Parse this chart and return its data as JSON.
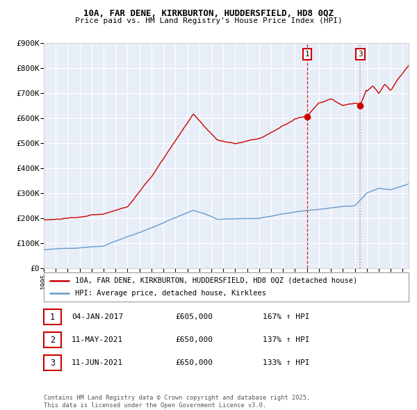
{
  "title": "10A, FAR DENE, KIRKBURTON, HUDDERSFIELD, HD8 0QZ",
  "subtitle": "Price paid vs. HM Land Registry's House Price Index (HPI)",
  "legend_line1": "10A, FAR DENE, KIRKBURTON, HUDDERSFIELD, HD8 0QZ (detached house)",
  "legend_line2": "HPI: Average price, detached house, Kirklees",
  "red_color": "#cc0000",
  "blue_color": "#6699cc",
  "background_color": "#e8eef8",
  "grid_color": "#ffffff",
  "ylim": [
    0,
    900000
  ],
  "yticks": [
    0,
    100000,
    200000,
    300000,
    400000,
    500000,
    600000,
    700000,
    800000,
    900000
  ],
  "ytick_labels": [
    "£0",
    "£100K",
    "£200K",
    "£300K",
    "£400K",
    "£500K",
    "£600K",
    "£700K",
    "£800K",
    "£900K"
  ],
  "xmin": 1995,
  "xmax": 2025.5,
  "footnote": "Contains HM Land Registry data © Crown copyright and database right 2025.\nThis data is licensed under the Open Government Licence v3.0.",
  "vline1_x": 2017.02,
  "vline2_x": 2021.46,
  "event1_marker_y": 605000,
  "event3_marker_y": 650000,
  "table": [
    {
      "num": "1",
      "date": "04-JAN-2017",
      "price": "£605,000",
      "pct": "167% ↑ HPI"
    },
    {
      "num": "2",
      "date": "11-MAY-2021",
      "price": "£650,000",
      "pct": "137% ↑ HPI"
    },
    {
      "num": "3",
      "date": "11-JUN-2021",
      "price": "£650,000",
      "pct": "133% ↑ HPI"
    }
  ]
}
